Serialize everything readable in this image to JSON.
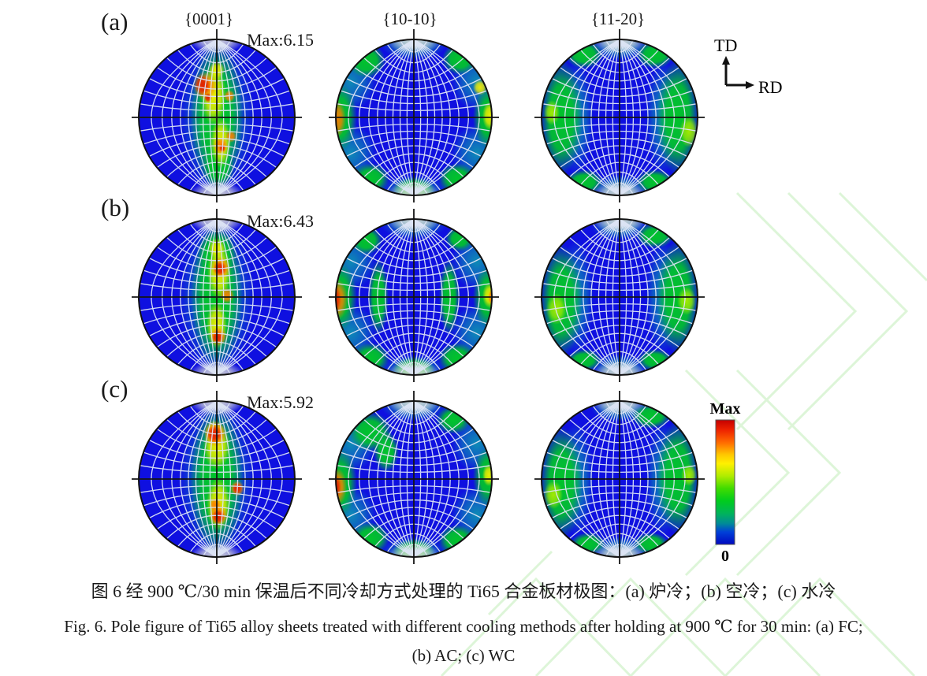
{
  "figure": {
    "panel_labels": [
      "(a)",
      "(b)",
      "(c)"
    ],
    "column_headers": [
      "{0001}",
      "{10-10}",
      "{11-20}"
    ],
    "max_labels": [
      "Max:6.15",
      "Max:6.43",
      "Max:5.92"
    ],
    "axis_marker": {
      "vertical_label": "TD",
      "horizontal_label": "RD"
    },
    "colorbar": {
      "top_label": "Max",
      "bottom_label": "0"
    },
    "captions": {
      "chinese": "图 6  经 900 ℃/30 min 保温后不同冷却方式处理的 Ti65 合金板材极图：(a) 炉冷；(b) 空冷；(c) 水冷",
      "english_line1": "Fig. 6. Pole figure of Ti65 alloy sheets treated with different cooling methods after holding at 900  ℃  for 30 min: (a) FC;",
      "english_line2": "(b) AC; (c) WC"
    }
  },
  "chart_data": {
    "type": "heatmap",
    "title": "Pole figures of Ti65 alloy sheets treated with different cooling methods after holding at 900 C for 30 min",
    "columns": [
      "{0001}",
      "{10-10}",
      "{11-20}"
    ],
    "rows": [
      {
        "panel": "(a)",
        "cooling_zh": "炉冷",
        "cooling_en": "FC",
        "max_intensity": 6.15
      },
      {
        "panel": "(b)",
        "cooling_zh": "空冷",
        "cooling_en": "AC",
        "max_intensity": 6.43
      },
      {
        "panel": "(c)",
        "cooling_zh": "水冷",
        "cooling_en": "WC",
        "max_intensity": 5.92
      }
    ],
    "intensity_scale": {
      "min": 0,
      "max_label": "Max"
    },
    "sample_directions": {
      "up": "TD",
      "right": "RD"
    },
    "palette": {
      "blue": "#0f10e0",
      "teal": "#0d98b0",
      "green": "#01c32b",
      "lime": "#a8ec00",
      "yellow": "#f6ee00",
      "orange": "#ff7d00",
      "red": "#e02200",
      "cap": "#d8dad6",
      "grid": "#dde5f5",
      "crosshair": "#151515",
      "outline": "#111111"
    },
    "figures": [
      {
        "panel": "(a)",
        "plane": "{0001}",
        "row": 0,
        "col": 0,
        "blobs": [
          [
            "teal",
            0,
            0,
            48,
            98
          ],
          [
            "green",
            0,
            -2,
            34,
            93
          ],
          [
            "green",
            2,
            62,
            20,
            28
          ],
          [
            "yellow",
            -4,
            -28,
            16,
            38
          ],
          [
            "yellow",
            5,
            32,
            13,
            32
          ],
          [
            "yellow",
            0,
            -60,
            10,
            12
          ],
          [
            "orange",
            -15,
            -40,
            15,
            18
          ],
          [
            "orange",
            5,
            36,
            9,
            11
          ],
          [
            "orange",
            16,
            -27,
            7,
            8
          ],
          [
            "orange",
            18,
            24,
            7,
            8
          ],
          [
            "red",
            -18,
            -41,
            10,
            13
          ],
          [
            "red",
            -11,
            -25,
            5,
            6
          ],
          [
            "red",
            7,
            39,
            4,
            5
          ]
        ]
      },
      {
        "panel": "(a)",
        "plane": "{10-10}",
        "row": 0,
        "col": 1,
        "blobs": [
          [
            "teal",
            -80,
            -45,
            32,
            36
          ],
          [
            "teal",
            80,
            -45,
            32,
            36
          ],
          [
            "teal",
            -80,
            45,
            32,
            36
          ],
          [
            "teal",
            80,
            45,
            32,
            36
          ],
          [
            "teal",
            0,
            -93,
            42,
            20
          ],
          [
            "teal",
            0,
            93,
            42,
            20
          ],
          [
            "green",
            -94,
            0,
            22,
            44
          ],
          [
            "green",
            95,
            0,
            20,
            40
          ],
          [
            "green",
            -60,
            -72,
            24,
            22
          ],
          [
            "green",
            58,
            -74,
            22,
            20
          ],
          [
            "green",
            -55,
            78,
            24,
            20
          ],
          [
            "green",
            55,
            78,
            24,
            20
          ],
          [
            "green",
            0,
            91,
            26,
            15
          ],
          [
            "yellow",
            84,
            -38,
            9,
            10
          ],
          [
            "yellow",
            96,
            -2,
            9,
            18
          ],
          [
            "orange",
            -98,
            2,
            12,
            24
          ],
          [
            "red",
            -104,
            2,
            6,
            13
          ]
        ]
      },
      {
        "panel": "(a)",
        "plane": "{11-20}",
        "row": 0,
        "col": 2,
        "blobs": [
          [
            "teal",
            -55,
            0,
            22,
            72
          ],
          [
            "teal",
            55,
            0,
            22,
            72
          ],
          [
            "teal",
            0,
            -90,
            36,
            18
          ],
          [
            "teal",
            0,
            90,
            36,
            18
          ],
          [
            "green",
            -74,
            0,
            27,
            74
          ],
          [
            "green",
            74,
            0,
            27,
            74
          ],
          [
            "green",
            -45,
            -80,
            24,
            18
          ],
          [
            "green",
            45,
            -80,
            24,
            18
          ],
          [
            "green",
            -45,
            82,
            24,
            16
          ],
          [
            "green",
            45,
            82,
            24,
            16
          ],
          [
            "lime",
            88,
            18,
            12,
            20
          ],
          [
            "lime",
            -86,
            -6,
            10,
            16
          ]
        ]
      },
      {
        "panel": "(b)",
        "plane": "{0001}",
        "row": 1,
        "col": 0,
        "blobs": [
          [
            "teal",
            0,
            0,
            48,
            98
          ],
          [
            "green",
            0,
            -2,
            33,
            93
          ],
          [
            "green",
            0,
            -55,
            24,
            30
          ],
          [
            "yellow",
            3,
            -32,
            15,
            36
          ],
          [
            "yellow",
            0,
            36,
            13,
            30
          ],
          [
            "yellow",
            0,
            -62,
            11,
            13
          ],
          [
            "orange",
            5,
            -37,
            12,
            14
          ],
          [
            "orange",
            2,
            50,
            11,
            12
          ],
          [
            "orange",
            13,
            -2,
            9,
            10
          ],
          [
            "red",
            4,
            -36,
            8,
            9
          ],
          [
            "red",
            1,
            51,
            7,
            8
          ]
        ]
      },
      {
        "panel": "(b)",
        "plane": "{10-10}",
        "row": 1,
        "col": 1,
        "blobs": [
          [
            "teal",
            -80,
            -45,
            32,
            36
          ],
          [
            "teal",
            80,
            -45,
            32,
            36
          ],
          [
            "teal",
            -80,
            45,
            32,
            36
          ],
          [
            "teal",
            80,
            45,
            32,
            36
          ],
          [
            "teal",
            0,
            -93,
            42,
            20
          ],
          [
            "teal",
            0,
            93,
            42,
            20
          ],
          [
            "green",
            -94,
            0,
            22,
            44
          ],
          [
            "green",
            95,
            0,
            20,
            40
          ],
          [
            "green",
            -45,
            0,
            13,
            48
          ],
          [
            "green",
            45,
            0,
            13,
            48
          ],
          [
            "green",
            -55,
            78,
            24,
            20
          ],
          [
            "green",
            55,
            78,
            24,
            20
          ],
          [
            "green",
            0,
            91,
            26,
            15
          ],
          [
            "green",
            -60,
            -72,
            20,
            18
          ],
          [
            "green",
            58,
            -74,
            18,
            16
          ],
          [
            "yellow",
            96,
            -2,
            9,
            16
          ],
          [
            "orange",
            -97,
            3,
            13,
            26
          ],
          [
            "orange",
            99,
            0,
            5,
            10
          ],
          [
            "red",
            -101,
            3,
            9,
            18
          ]
        ]
      },
      {
        "panel": "(b)",
        "plane": "{11-20}",
        "row": 1,
        "col": 2,
        "blobs": [
          [
            "teal",
            -55,
            0,
            22,
            72
          ],
          [
            "teal",
            55,
            0,
            22,
            72
          ],
          [
            "teal",
            0,
            -90,
            36,
            18
          ],
          [
            "teal",
            0,
            90,
            36,
            18
          ],
          [
            "green",
            -74,
            5,
            27,
            72
          ],
          [
            "green",
            74,
            0,
            27,
            72
          ],
          [
            "green",
            45,
            -78,
            24,
            16
          ],
          [
            "green",
            -45,
            80,
            22,
            14
          ],
          [
            "green",
            45,
            80,
            22,
            14
          ],
          [
            "lime",
            -80,
            15,
            13,
            20
          ],
          [
            "lime",
            85,
            5,
            12,
            18
          ]
        ]
      },
      {
        "panel": "(c)",
        "plane": "{0001}",
        "row": 2,
        "col": 0,
        "blobs": [
          [
            "teal",
            0,
            0,
            48,
            98
          ],
          [
            "green",
            0,
            0,
            34,
            94
          ],
          [
            "yellow",
            0,
            -42,
            17,
            30
          ],
          [
            "yellow",
            2,
            32,
            15,
            34
          ],
          [
            "yellow",
            -3,
            -60,
            13,
            15
          ],
          [
            "orange",
            -2,
            -57,
            14,
            16
          ],
          [
            "orange",
            2,
            46,
            12,
            13
          ],
          [
            "orange",
            26,
            12,
            9,
            10
          ],
          [
            "orange",
            -2,
            33,
            8,
            9
          ],
          [
            "red",
            -3,
            -57,
            10,
            11
          ],
          [
            "red",
            2,
            48,
            8,
            9
          ],
          [
            "red",
            26,
            12,
            6,
            7
          ]
        ]
      },
      {
        "panel": "(c)",
        "plane": "{10-10}",
        "row": 2,
        "col": 1,
        "blobs": [
          [
            "teal",
            -80,
            -45,
            32,
            36
          ],
          [
            "teal",
            80,
            -45,
            32,
            36
          ],
          [
            "teal",
            -80,
            45,
            32,
            36
          ],
          [
            "teal",
            80,
            45,
            32,
            36
          ],
          [
            "teal",
            0,
            -93,
            42,
            20
          ],
          [
            "teal",
            0,
            93,
            42,
            20
          ],
          [
            "green",
            -94,
            5,
            22,
            44
          ],
          [
            "green",
            95,
            -3,
            20,
            38
          ],
          [
            "green",
            -55,
            -60,
            27,
            25
          ],
          [
            "green",
            50,
            -75,
            22,
            18
          ],
          [
            "green",
            -55,
            75,
            24,
            20
          ],
          [
            "green",
            55,
            78,
            24,
            20
          ],
          [
            "green",
            0,
            91,
            26,
            15
          ],
          [
            "green",
            -35,
            -35,
            16,
            26
          ],
          [
            "yellow",
            95,
            -5,
            8,
            14
          ],
          [
            "orange",
            -97,
            10,
            12,
            24
          ],
          [
            "red",
            -100,
            10,
            8,
            16
          ]
        ]
      },
      {
        "panel": "(c)",
        "plane": "{11-20}",
        "row": 2,
        "col": 2,
        "blobs": [
          [
            "teal",
            -55,
            0,
            22,
            72
          ],
          [
            "teal",
            55,
            0,
            22,
            72
          ],
          [
            "teal",
            0,
            -90,
            36,
            18
          ],
          [
            "teal",
            0,
            90,
            36,
            18
          ],
          [
            "green",
            -74,
            5,
            27,
            72
          ],
          [
            "green",
            74,
            -2,
            27,
            72
          ],
          [
            "green",
            40,
            -80,
            25,
            16
          ],
          [
            "green",
            -40,
            82,
            22,
            14
          ],
          [
            "green",
            40,
            82,
            22,
            14
          ],
          [
            "lime",
            -84,
            20,
            12,
            18
          ],
          [
            "lime",
            88,
            -5,
            10,
            14
          ]
        ]
      }
    ]
  }
}
